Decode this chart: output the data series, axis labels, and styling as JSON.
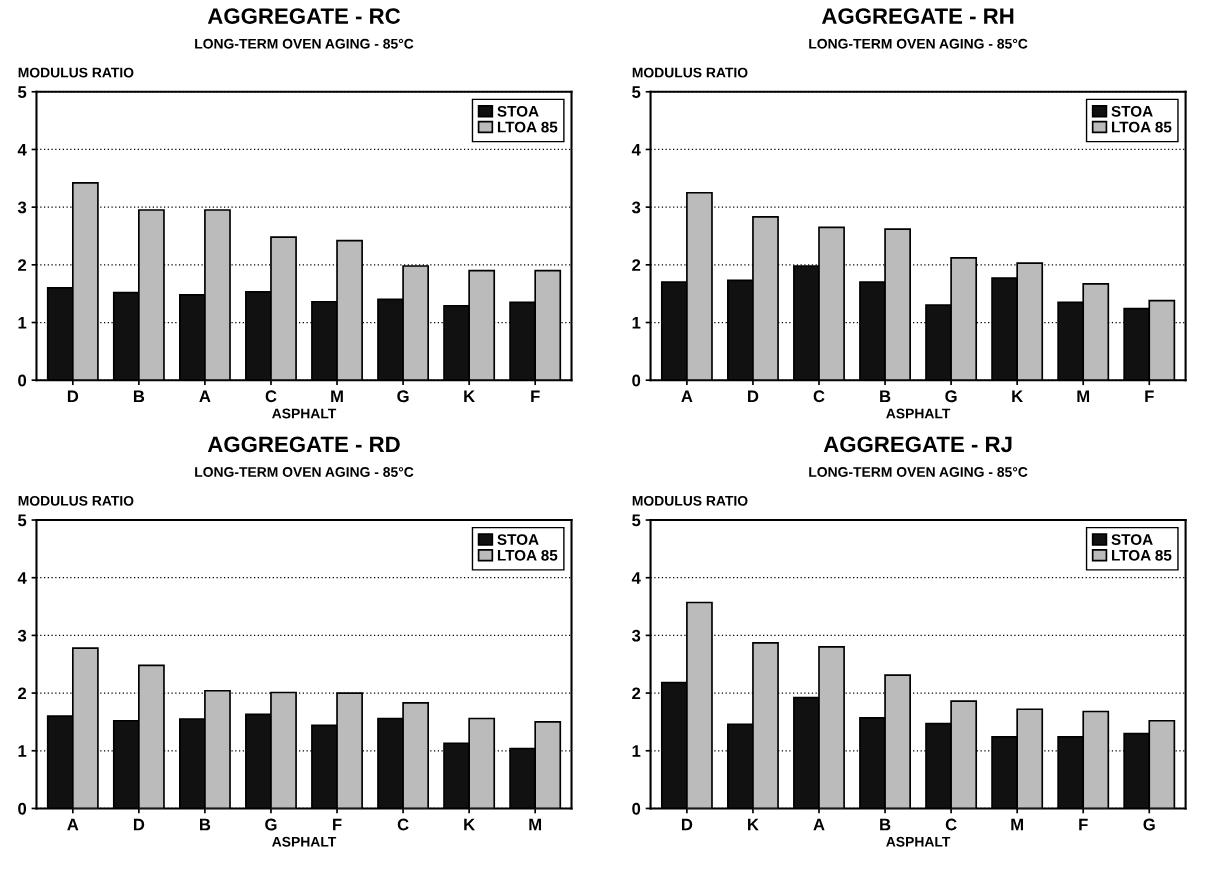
{
  "chart_data": [
    {
      "type": "bar",
      "title": "AGGREGATE - RC",
      "subtitle": "LONG-TERM OVEN AGING - 85°C",
      "ylabel": "MODULUS RATIO",
      "xlabel": "ASPHALT",
      "categories": [
        "D",
        "B",
        "A",
        "C",
        "M",
        "G",
        "K",
        "F"
      ],
      "ylim": [
        0,
        5
      ],
      "yticks": [
        0,
        1,
        2,
        3,
        4,
        5
      ],
      "grid": "y",
      "legend": "top right",
      "series": [
        {
          "name": "STOA",
          "color": "#111111",
          "values": [
            1.6,
            1.52,
            1.48,
            1.53,
            1.36,
            1.4,
            1.29,
            1.35
          ]
        },
        {
          "name": "LTOA 85",
          "color": "#bbbbbb",
          "values": [
            3.42,
            2.95,
            2.95,
            2.48,
            2.42,
            1.98,
            1.9,
            1.9
          ]
        }
      ]
    },
    {
      "type": "bar",
      "title": "AGGREGATE - RH",
      "subtitle": "LONG-TERM OVEN AGING - 85°C",
      "ylabel": "MODULUS RATIO",
      "xlabel": "ASPHALT",
      "categories": [
        "A",
        "D",
        "C",
        "B",
        "G",
        "K",
        "M",
        "F"
      ],
      "ylim": [
        0,
        5
      ],
      "yticks": [
        0,
        1,
        2,
        3,
        4,
        5
      ],
      "grid": "y",
      "legend": "top right",
      "series": [
        {
          "name": "STOA",
          "color": "#111111",
          "values": [
            1.7,
            1.73,
            1.98,
            1.7,
            1.3,
            1.77,
            1.35,
            1.24
          ]
        },
        {
          "name": "LTOA 85",
          "color": "#bbbbbb",
          "values": [
            3.25,
            2.83,
            2.65,
            2.62,
            2.12,
            2.03,
            1.67,
            1.38
          ]
        }
      ]
    },
    {
      "type": "bar",
      "title": "AGGREGATE - RD",
      "subtitle": "LONG-TERM OVEN AGING - 85°C",
      "ylabel": "MODULUS RATIO",
      "xlabel": "ASPHALT",
      "categories": [
        "A",
        "D",
        "B",
        "G",
        "F",
        "C",
        "K",
        "M"
      ],
      "ylim": [
        0,
        5
      ],
      "yticks": [
        0,
        1,
        2,
        3,
        4,
        5
      ],
      "grid": "y",
      "legend": "top right",
      "series": [
        {
          "name": "STOA",
          "color": "#111111",
          "values": [
            1.6,
            1.52,
            1.55,
            1.63,
            1.44,
            1.56,
            1.13,
            1.04
          ]
        },
        {
          "name": "LTOA 85",
          "color": "#bbbbbb",
          "values": [
            2.78,
            2.48,
            2.04,
            2.01,
            2.0,
            1.83,
            1.56,
            1.5
          ]
        }
      ]
    },
    {
      "type": "bar",
      "title": "AGGREGATE - RJ",
      "subtitle": "LONG-TERM OVEN AGING - 85°C",
      "ylabel": "MODULUS RATIO",
      "xlabel": "ASPHALT",
      "categories": [
        "D",
        "K",
        "A",
        "B",
        "C",
        "M",
        "F",
        "G"
      ],
      "ylim": [
        0,
        5
      ],
      "yticks": [
        0,
        1,
        2,
        3,
        4,
        5
      ],
      "grid": "y",
      "legend": "top right",
      "series": [
        {
          "name": "STOA",
          "color": "#111111",
          "values": [
            2.18,
            1.46,
            1.92,
            1.57,
            1.47,
            1.24,
            1.24,
            1.3
          ]
        },
        {
          "name": "LTOA 85",
          "color": "#bbbbbb",
          "values": [
            3.57,
            2.87,
            2.8,
            2.31,
            1.86,
            1.72,
            1.68,
            1.52
          ]
        }
      ]
    }
  ]
}
